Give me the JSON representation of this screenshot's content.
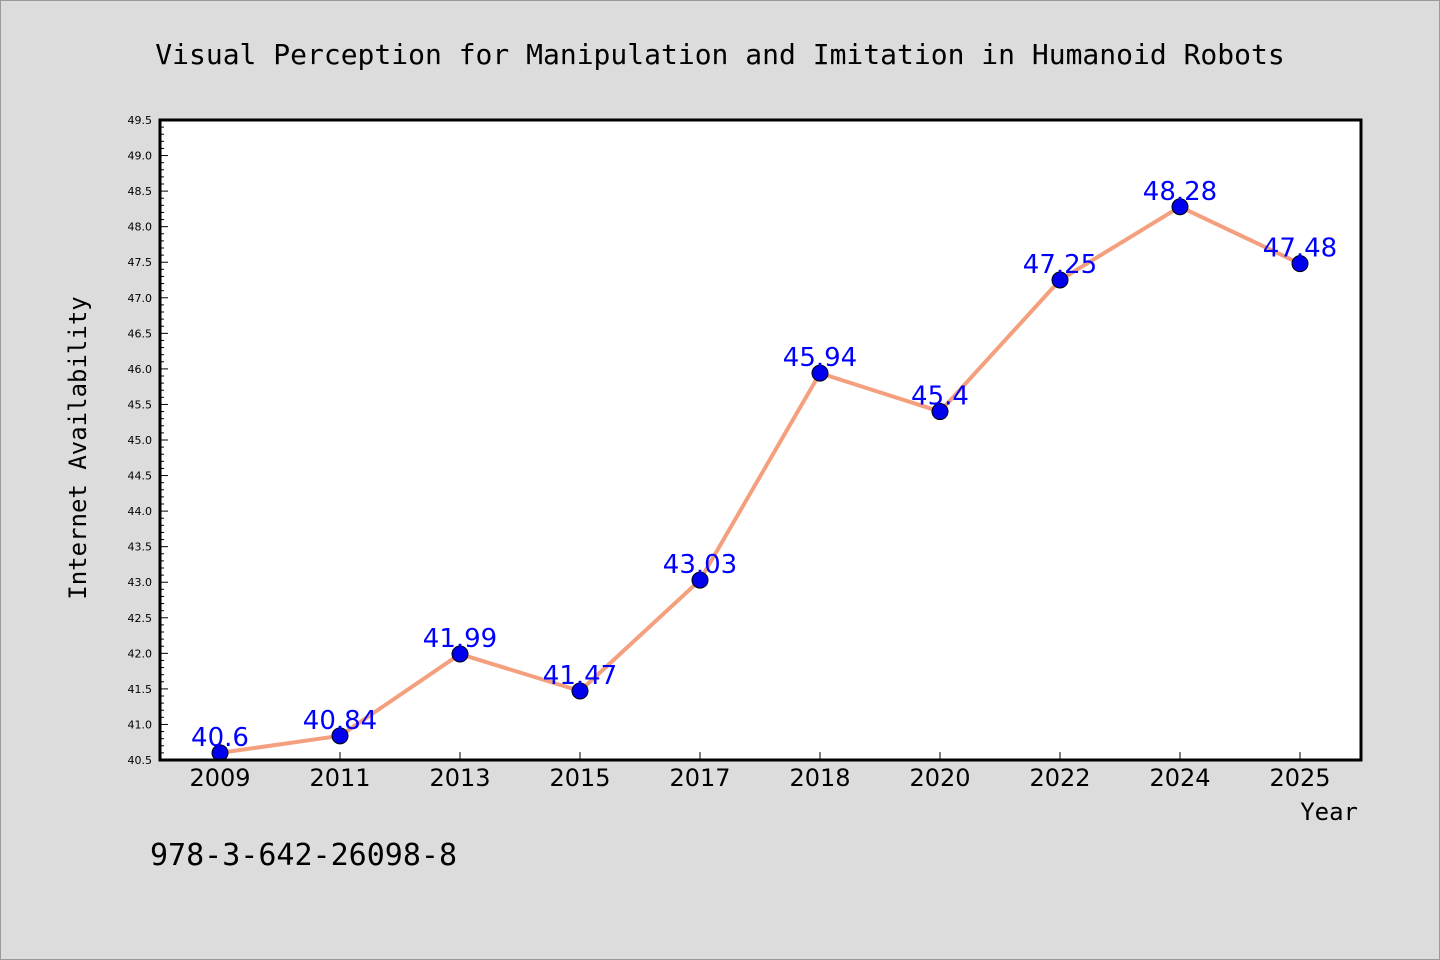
{
  "chart_data": {
    "type": "line",
    "title": "Visual Perception for Manipulation and Imitation in Humanoid Robots",
    "xlabel": "Year",
    "ylabel": "Internet Availability",
    "categories": [
      "2009",
      "2011",
      "2013",
      "2015",
      "2017",
      "2018",
      "2020",
      "2022",
      "2024",
      "2025"
    ],
    "series": [
      {
        "values": [
          40.6,
          40.84,
          41.99,
          41.47,
          43.03,
          45.94,
          45.4,
          47.25,
          48.28,
          47.48
        ],
        "data_labels": [
          "40.6",
          "40.84",
          "41.99",
          "41.47",
          "43.03",
          "45.94",
          "45.4",
          "47.25",
          "48.28",
          "47.48"
        ]
      }
    ],
    "ylim": [
      40.5,
      49.5
    ],
    "yticks": [
      "40.5",
      "41.0",
      "41.5",
      "42.0",
      "42.5",
      "43.0",
      "43.5",
      "44.0",
      "44.5",
      "45.0",
      "45.5",
      "46.0",
      "46.5",
      "47.0",
      "47.5",
      "48.0",
      "48.5",
      "49.0",
      "49.5"
    ],
    "grid": false,
    "legend": "none",
    "colors": {
      "line": "#f4a07e",
      "marker": "#0000ee",
      "label": "#0000ff",
      "background": "#dcdcdc",
      "plot_area": "#ffffff"
    }
  },
  "footer": {
    "isbn": "978-3-642-26098-8"
  }
}
